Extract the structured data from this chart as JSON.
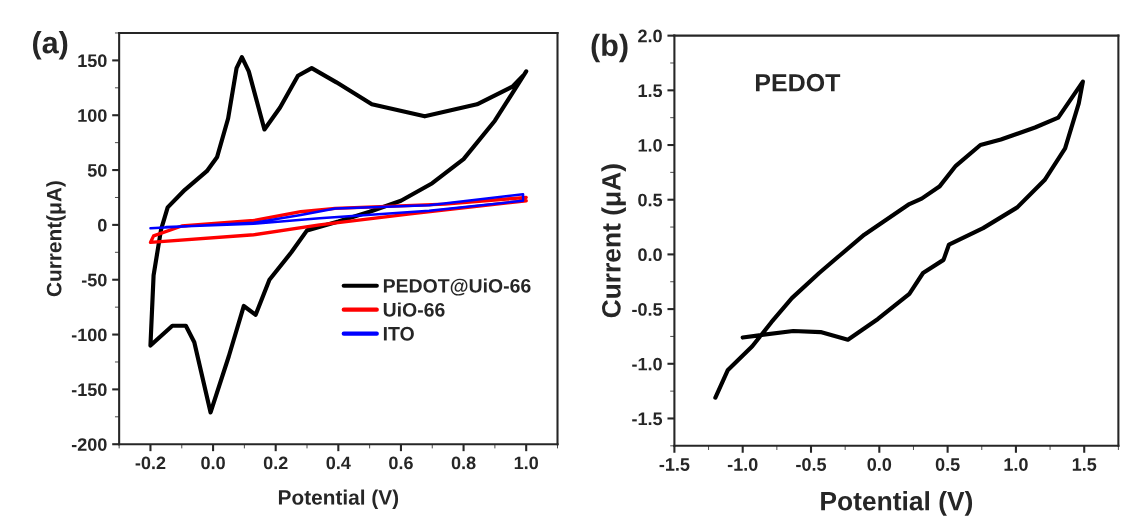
{
  "chart_data": [
    {
      "type": "line",
      "title": "(a)",
      "xlabel": "Potential (V)",
      "ylabel": "Current(μA)",
      "xlim": [
        -0.3,
        1.1
      ],
      "ylim": [
        -200,
        175
      ],
      "xticks": [
        {
          "value": -0.2,
          "label": "-0.2"
        },
        {
          "value": 0,
          "label": "0.0"
        },
        0.2,
        0.4,
        0.6,
        0.8,
        {
          "value": 1,
          "label": "1.0"
        }
      ],
      "yticks": [
        {
          "value": -200,
          "label": "-200"
        },
        {
          "value": -150,
          "label": "-150"
        },
        {
          "value": -100,
          "label": "-100"
        },
        {
          "value": -50,
          "label": "-50"
        },
        0,
        50,
        100,
        150
      ],
      "grid": false,
      "legend": "bottom right",
      "marker": "none",
      "line_style": "solid",
      "series": [
        {
          "name": "PEDOT@UiO-66",
          "color": "#000000",
          "x": [
            1.0,
            0.9,
            0.8,
            0.7,
            0.6,
            0.5,
            0.4,
            0.3,
            0.25,
            0.18,
            0.136,
            0.098,
            0.05,
            -0.008,
            -0.06,
            -0.087,
            -0.13,
            -0.2,
            -0.19,
            -0.166,
            -0.145,
            -0.09,
            -0.02,
            0.013,
            0.048,
            0.075,
            0.092,
            0.114,
            0.164,
            0.214,
            0.271,
            0.315,
            0.394,
            0.507,
            0.676,
            0.843,
            0.956,
            0.99
          ],
          "values": [
            140,
            95,
            60,
            38,
            22,
            12,
            3,
            -5,
            -25,
            -50,
            -82,
            -74,
            -120,
            -171,
            -107,
            -92,
            -92,
            -110,
            -46,
            -4,
            16,
            32,
            49,
            62,
            97,
            143,
            153,
            140,
            87,
            107,
            136,
            143,
            130,
            110,
            99,
            110,
            126,
            136
          ]
        },
        {
          "name": "UiO-66",
          "color": "#ff0000",
          "x": [
            1.0,
            0.63,
            0.34,
            0.13,
            -0.2,
            -0.19,
            -0.1,
            0.13,
            0.28,
            0.39,
            0.74,
            1.0
          ],
          "values": [
            22,
            10,
            0,
            -9,
            -16,
            -10,
            -1,
            4,
            12,
            15,
            19,
            25
          ]
        },
        {
          "name": "ITO",
          "color": "#0000ff",
          "x": [
            -0.2,
            0.13,
            0.28,
            0.39,
            0.69,
            0.99,
            0.99,
            0.69,
            0.34,
            0.13,
            -0.15
          ],
          "values": [
            -3,
            2,
            9,
            15,
            18,
            28,
            22,
            13,
            6,
            1,
            -2
          ]
        }
      ]
    },
    {
      "type": "line",
      "title": "(b)",
      "xlabel": "Potential (V)",
      "ylabel": "Current (μA)",
      "xlim": [
        -1.5,
        1.75
      ],
      "ylim": [
        -1.75,
        2.0
      ],
      "xticks": [
        {
          "value": -1.5,
          "label": "-1.5"
        },
        {
          "value": -1,
          "label": "-1.0"
        },
        {
          "value": -0.5,
          "label": "-0.5"
        },
        {
          "value": 0,
          "label": "0.0"
        },
        0.5,
        {
          "value": 1,
          "label": "1.0"
        },
        1.5
      ],
      "yticks": [
        {
          "value": -1.5,
          "label": "-1.5"
        },
        {
          "value": -1,
          "label": "-1.0"
        },
        {
          "value": -0.5,
          "label": "-0.5"
        },
        {
          "value": 0,
          "label": "0.0"
        },
        0.5,
        {
          "value": 1,
          "label": "1.0"
        },
        1.5,
        {
          "value": 2,
          "label": "2.0"
        }
      ],
      "grid": false,
      "marker": "none",
      "line_style": "solid",
      "annotations": [
        "PEDOT"
      ],
      "series": [
        {
          "color": "#000000",
          "x": [
            -1.2,
            -1.11,
            -0.93,
            -0.79,
            -0.64,
            -0.44,
            -0.29,
            -0.11,
            0.22,
            0.31,
            0.44,
            0.56,
            0.74,
            0.89,
            1.14,
            1.31,
            1.49,
            1.46,
            1.36,
            1.21,
            1.01,
            0.76,
            0.51,
            0.47,
            0.32,
            0.22,
            -0.01,
            -0.23,
            -0.43,
            -0.63,
            -0.88,
            -1.0
          ],
          "values": [
            -1.31,
            -1.06,
            -0.84,
            -0.62,
            -0.4,
            -0.17,
            -0.01,
            0.18,
            0.46,
            0.51,
            0.62,
            0.81,
            1.0,
            1.05,
            1.16,
            1.25,
            1.58,
            1.38,
            0.97,
            0.68,
            0.43,
            0.24,
            0.09,
            -0.05,
            -0.17,
            -0.36,
            -0.59,
            -0.78,
            -0.71,
            -0.7,
            -0.74,
            -0.76
          ]
        }
      ]
    }
  ]
}
